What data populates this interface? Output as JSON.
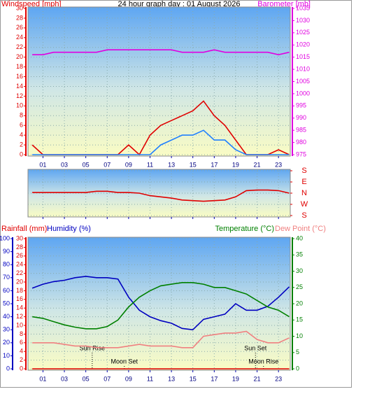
{
  "chart_data": [
    {
      "type": "line",
      "title": "24 hour graph day : 01 August 2026",
      "y_label": "Windspeed [mph]",
      "y2_label": "Barometer [mb]",
      "x": [
        0,
        1,
        2,
        3,
        4,
        5,
        6,
        7,
        8,
        9,
        10,
        11,
        12,
        13,
        14,
        15,
        16,
        17,
        18,
        19,
        20,
        21,
        22,
        23,
        24
      ],
      "xlim": [
        -0.4,
        24.1
      ],
      "xticks": [
        {
          "value": 1,
          "label": "01"
        },
        {
          "value": 3,
          "label": "03"
        },
        {
          "value": 5,
          "label": "05"
        },
        {
          "value": 7,
          "label": "07"
        },
        {
          "value": 9,
          "label": "09"
        },
        {
          "value": 11,
          "label": "11"
        },
        {
          "value": 13,
          "label": "13"
        },
        {
          "value": 15,
          "label": "15"
        },
        {
          "value": 17,
          "label": "17"
        },
        {
          "value": 19,
          "label": "19"
        },
        {
          "value": 21,
          "label": "21"
        },
        {
          "value": 23,
          "label": "23"
        }
      ],
      "ylim": [
        0,
        30
      ],
      "yticks": [
        0,
        2,
        4,
        6,
        8,
        10,
        12,
        14,
        16,
        18,
        20,
        22,
        24,
        26,
        28,
        30
      ],
      "y2lim": [
        975,
        1035
      ],
      "y2ticks": [
        975,
        980,
        985,
        990,
        995,
        1000,
        1005,
        1010,
        1015,
        1020,
        1025,
        1030,
        1035
      ],
      "grid": true,
      "series": [
        {
          "color": "#e00000",
          "values": [
            2,
            0,
            0,
            0,
            0,
            0,
            0,
            0,
            0,
            2,
            0,
            4,
            6,
            7,
            8,
            9,
            11,
            8,
            6,
            3,
            0,
            0,
            0,
            1,
            0
          ]
        },
        {
          "color": "#2080ff",
          "values": [
            0,
            0,
            0,
            0,
            0,
            0,
            0,
            0,
            0,
            0,
            0,
            0,
            2,
            3,
            4,
            4,
            5,
            3,
            3,
            1,
            0,
            0,
            0,
            0,
            0
          ]
        },
        {
          "color": "#e000e0",
          "axis": "y2",
          "values": [
            1016,
            1016,
            1017,
            1017,
            1017,
            1017,
            1017,
            1018,
            1018,
            1018,
            1018,
            1018,
            1018,
            1018,
            1017,
            1017,
            1017,
            1018,
            1017,
            1017,
            1017,
            1017,
            1017,
            1016,
            1017
          ]
        }
      ]
    },
    {
      "type": "line",
      "x": [
        0,
        1,
        2,
        3,
        4,
        5,
        6,
        7,
        8,
        9,
        10,
        11,
        12,
        13,
        14,
        15,
        16,
        17,
        18,
        19,
        20,
        21,
        22,
        23,
        24
      ],
      "xlim": [
        -0.4,
        24.1
      ],
      "xticks": [
        {
          "value": 1,
          "label": "01"
        },
        {
          "value": 3,
          "label": "03"
        },
        {
          "value": 5,
          "label": "05"
        },
        {
          "value": 7,
          "label": "07"
        },
        {
          "value": 9,
          "label": "09"
        },
        {
          "value": 11,
          "label": "11"
        },
        {
          "value": 13,
          "label": "13"
        },
        {
          "value": 15,
          "label": "15"
        },
        {
          "value": 17,
          "label": "17"
        },
        {
          "value": 19,
          "label": "19"
        },
        {
          "value": 21,
          "label": "21"
        },
        {
          "value": 23,
          "label": "23"
        }
      ],
      "ylim": [
        -180,
        180
      ],
      "yticks": [
        {
          "value": 180,
          "label": "S"
        },
        {
          "value": 90,
          "label": "E"
        },
        {
          "value": 0,
          "label": "N"
        },
        {
          "value": -90,
          "label": "W"
        },
        {
          "value": -180,
          "label": "S"
        }
      ],
      "grid": true,
      "series": [
        {
          "color": "#e00000",
          "values": [
            5,
            5,
            5,
            5,
            5,
            5,
            15,
            15,
            5,
            5,
            0,
            -20,
            -30,
            -40,
            -55,
            -60,
            -65,
            -60,
            -55,
            -30,
            20,
            25,
            25,
            20,
            0
          ]
        }
      ]
    },
    {
      "type": "line",
      "x": [
        0,
        1,
        2,
        3,
        4,
        5,
        6,
        7,
        8,
        9,
        10,
        11,
        12,
        13,
        14,
        15,
        16,
        17,
        18,
        19,
        20,
        21,
        22,
        23,
        24
      ],
      "xlim": [
        -0.4,
        24.1
      ],
      "xticks": [
        {
          "value": 1,
          "label": "01"
        },
        {
          "value": 3,
          "label": "03"
        },
        {
          "value": 5,
          "label": "05"
        },
        {
          "value": 7,
          "label": "07"
        },
        {
          "value": 9,
          "label": "09"
        },
        {
          "value": 11,
          "label": "11"
        },
        {
          "value": 13,
          "label": "13"
        },
        {
          "value": 15,
          "label": "15"
        },
        {
          "value": 17,
          "label": "17"
        },
        {
          "value": 19,
          "label": "19"
        },
        {
          "value": 21,
          "label": "21"
        },
        {
          "value": 23,
          "label": "23"
        }
      ],
      "ylim": [
        0,
        30
      ],
      "yticks": [
        0,
        2,
        4,
        6,
        8,
        10,
        12,
        14,
        16,
        18,
        20,
        22,
        24,
        26,
        28,
        30
      ],
      "y3lim": [
        0,
        100
      ],
      "y3ticks": [
        0,
        10,
        20,
        30,
        40,
        50,
        60,
        70,
        80,
        90,
        100
      ],
      "y2lim": [
        0,
        40
      ],
      "y2ticks": [
        0,
        5,
        10,
        15,
        20,
        25,
        30,
        35,
        40
      ],
      "grid": true,
      "annotations": [
        {
          "text": "Sun Rise",
          "x": 5.6
        },
        {
          "text": "Moon Set",
          "x": 8.6
        },
        {
          "text": "Sun Set",
          "x": 20.85
        },
        {
          "text": "Moon Rise",
          "x": 21.6
        }
      ],
      "series": [
        {
          "name": "Rainfall (mm)",
          "color": "#e00000",
          "values": [
            0,
            0,
            0,
            0,
            0,
            0,
            0,
            0,
            0,
            0,
            0,
            0,
            0,
            0,
            0,
            0,
            0,
            0,
            0,
            0,
            0,
            0,
            0,
            0,
            0
          ]
        },
        {
          "name": "Humidity (%)",
          "color": "#0000c0",
          "axis": "y3",
          "values": [
            62,
            65,
            67,
            68,
            70,
            71,
            70,
            70,
            69,
            55,
            45,
            40,
            37,
            35,
            31,
            30,
            38,
            40,
            42,
            50,
            45,
            45,
            48,
            55,
            63
          ]
        },
        {
          "name": "Temperature (°C)",
          "color": "#008000",
          "axis": "y2",
          "values": [
            16,
            15.5,
            14.5,
            13.5,
            12.8,
            12.3,
            12.3,
            13,
            15,
            19,
            22,
            24,
            25.5,
            26,
            26.5,
            26.5,
            26,
            25,
            25,
            24,
            23,
            21,
            19,
            18,
            16
          ]
        },
        {
          "name": "Dew Point (°C)",
          "color": "#f08080",
          "axis": "y2",
          "values": [
            8,
            8,
            8,
            7.5,
            7,
            7,
            6.5,
            6.5,
            6.5,
            7,
            7.5,
            7,
            7,
            7,
            6.5,
            6.5,
            10,
            10.5,
            11,
            11,
            11.5,
            9,
            8,
            8,
            9.5
          ]
        }
      ]
    }
  ]
}
